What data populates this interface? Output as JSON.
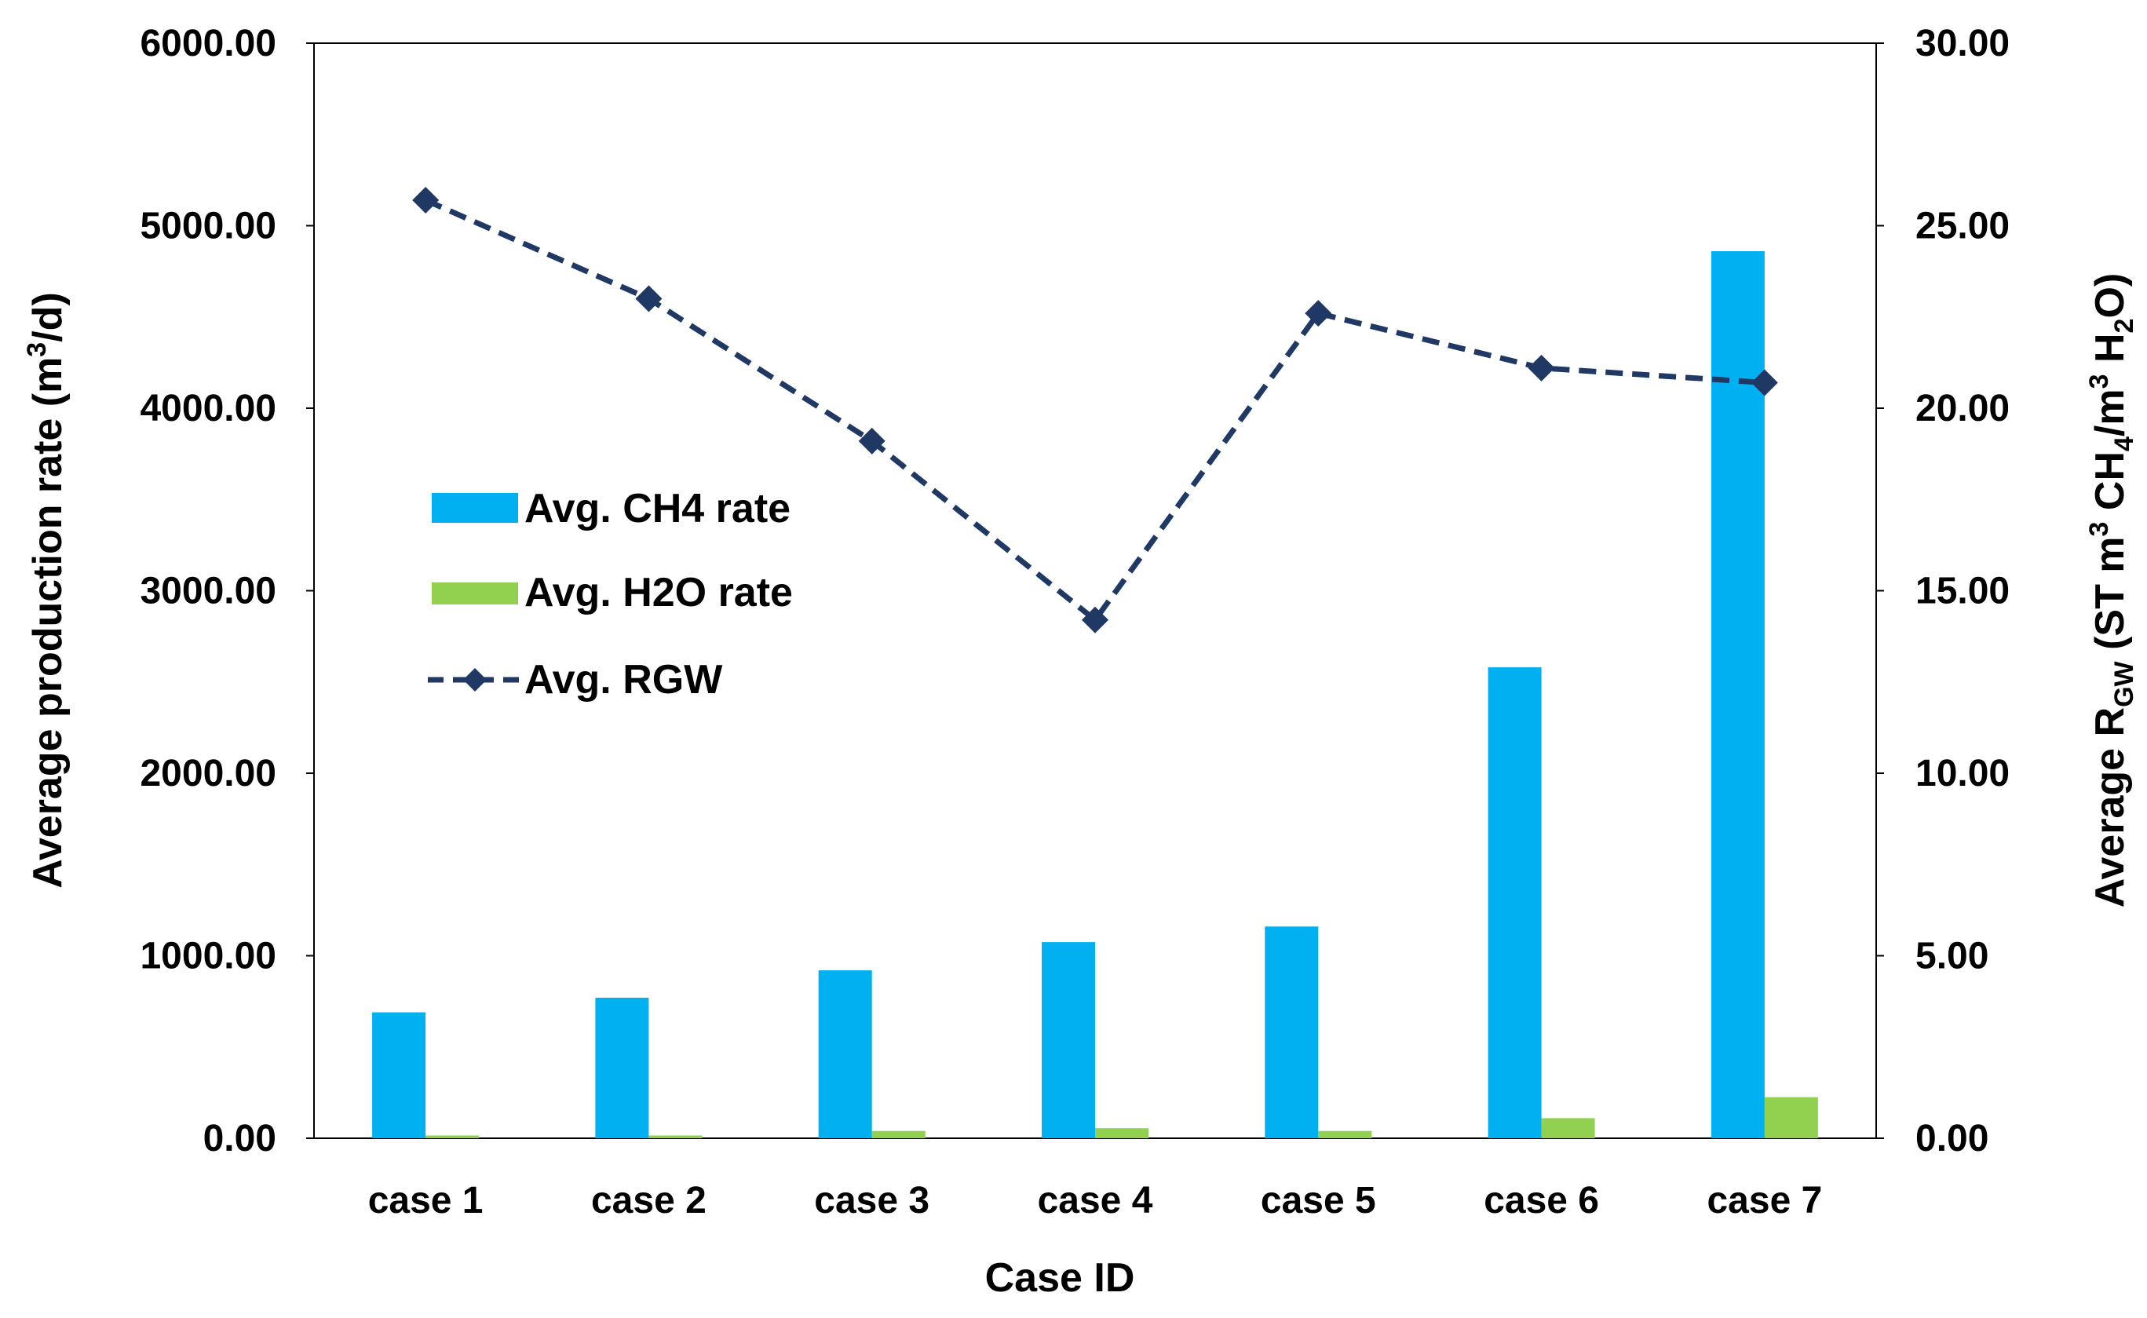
{
  "chart_data": {
    "type": "bar",
    "combo": "bar+line (dual axis)",
    "categories": [
      "case 1",
      "case 2",
      "case 3",
      "case 4",
      "case 5",
      "case 6",
      "case 7"
    ],
    "series": [
      {
        "name": "Avg. CH4 rate",
        "type": "bar",
        "axis": "left",
        "color": "#00B0F0",
        "values": [
          690,
          770,
          920,
          1075,
          1160,
          2580,
          4860
        ]
      },
      {
        "name": "Avg. H2O rate",
        "type": "bar",
        "axis": "left",
        "color": "#92D050",
        "values": [
          15,
          15,
          40,
          55,
          40,
          110,
          225
        ]
      },
      {
        "name": "Avg. RGW",
        "type": "line",
        "axis": "right",
        "color": "#1F3864",
        "line_style": "dashed",
        "marker": "diamond",
        "values": [
          25.7,
          23.0,
          19.1,
          14.2,
          22.6,
          21.1,
          20.7
        ]
      }
    ],
    "xlabel": "Case ID",
    "ylabel": {
      "main": "Average production rate (m",
      "sup": "3",
      "tail": "/d)"
    },
    "y2label": {
      "p1": "Average R",
      "sub1": "GW",
      "p2": "  (ST m",
      "sup1": "3",
      "p3": " CH",
      "sub2": "4",
      "p4": "/m",
      "sup2": "3",
      "p5": " H",
      "sub3": "2",
      "p6": "O)"
    },
    "ylim": [
      0,
      6000
    ],
    "yticks": [
      "0.00",
      "1000.00",
      "2000.00",
      "3000.00",
      "4000.00",
      "5000.00",
      "6000.00"
    ],
    "y2lim": [
      0,
      30
    ],
    "y2ticks": [
      "0.00",
      "5.00",
      "10.00",
      "15.00",
      "20.00",
      "25.00",
      "30.00"
    ],
    "grid": false,
    "legend_position": "upper-left"
  }
}
